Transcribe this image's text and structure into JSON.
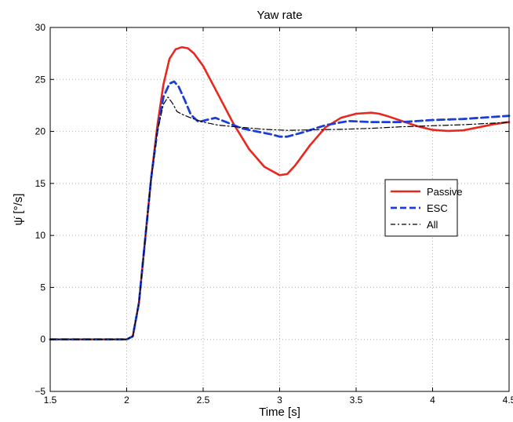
{
  "chart_data": {
    "type": "line",
    "title": "Yaw rate",
    "xlabel": "Time [s]",
    "ylabel": "ψ̇ [°/s]",
    "xlim": [
      1.5,
      4.5
    ],
    "ylim": [
      -5,
      30
    ],
    "xticks": [
      1.5,
      2,
      2.5,
      3,
      3.5,
      4,
      4.5
    ],
    "xtick_labels": [
      "1.5",
      "2",
      "2.5",
      "3",
      "3.5",
      "4",
      "4.5"
    ],
    "yticks": [
      -5,
      0,
      5,
      10,
      15,
      20,
      25,
      30
    ],
    "ytick_labels": [
      "−5",
      "0",
      "5",
      "10",
      "15",
      "20",
      "25",
      "30"
    ],
    "grid": true,
    "legend_position": "center-right",
    "series": [
      {
        "name": "Passive",
        "color": "#e8281e",
        "style": "solid",
        "x": [
          1.5,
          2.0,
          2.04,
          2.08,
          2.12,
          2.16,
          2.2,
          2.24,
          2.28,
          2.32,
          2.36,
          2.4,
          2.44,
          2.5,
          2.6,
          2.7,
          2.8,
          2.9,
          3.0,
          3.05,
          3.1,
          3.2,
          3.3,
          3.4,
          3.5,
          3.6,
          3.65,
          3.7,
          3.8,
          3.9,
          4.0,
          4.1,
          4.2,
          4.3,
          4.4,
          4.5
        ],
        "y": [
          0,
          0,
          0.3,
          3.5,
          9.5,
          15.5,
          20.5,
          24.5,
          27.0,
          27.9,
          28.1,
          28.0,
          27.5,
          26.3,
          23.5,
          20.7,
          18.3,
          16.6,
          15.8,
          15.9,
          16.7,
          18.7,
          20.4,
          21.3,
          21.7,
          21.8,
          21.7,
          21.5,
          21.0,
          20.5,
          20.15,
          20.05,
          20.1,
          20.4,
          20.7,
          20.9
        ]
      },
      {
        "name": "ESC",
        "color": "#1b3fd6",
        "style": "dashed",
        "x": [
          1.5,
          2.0,
          2.04,
          2.08,
          2.12,
          2.16,
          2.2,
          2.24,
          2.28,
          2.31,
          2.34,
          2.38,
          2.42,
          2.47,
          2.52,
          2.58,
          2.65,
          2.75,
          2.85,
          2.95,
          3.0,
          3.05,
          3.15,
          3.3,
          3.45,
          3.6,
          3.8,
          4.0,
          4.2,
          4.4,
          4.5
        ],
        "y": [
          0,
          0,
          0.3,
          3.5,
          9.5,
          15.5,
          20.0,
          23.3,
          24.6,
          24.8,
          24.3,
          23.0,
          21.6,
          20.9,
          21.1,
          21.3,
          20.9,
          20.3,
          20.0,
          19.7,
          19.5,
          19.5,
          19.9,
          20.6,
          21.0,
          20.9,
          20.9,
          21.1,
          21.2,
          21.4,
          21.5
        ]
      },
      {
        "name": "All",
        "color": "#000000",
        "style": "dashdot",
        "x": [
          1.5,
          2.0,
          2.04,
          2.08,
          2.12,
          2.16,
          2.2,
          2.24,
          2.27,
          2.3,
          2.33,
          2.37,
          2.42,
          2.5,
          2.6,
          2.75,
          2.9,
          3.05,
          3.2,
          3.4,
          3.6,
          3.8,
          4.0,
          4.2,
          4.4,
          4.5
        ],
        "y": [
          0,
          0,
          0.3,
          3.5,
          9.5,
          15.5,
          20.0,
          22.6,
          23.3,
          22.7,
          21.9,
          21.6,
          21.3,
          20.9,
          20.6,
          20.4,
          20.2,
          20.1,
          20.15,
          20.2,
          20.3,
          20.45,
          20.55,
          20.65,
          20.8,
          20.9
        ]
      }
    ]
  }
}
